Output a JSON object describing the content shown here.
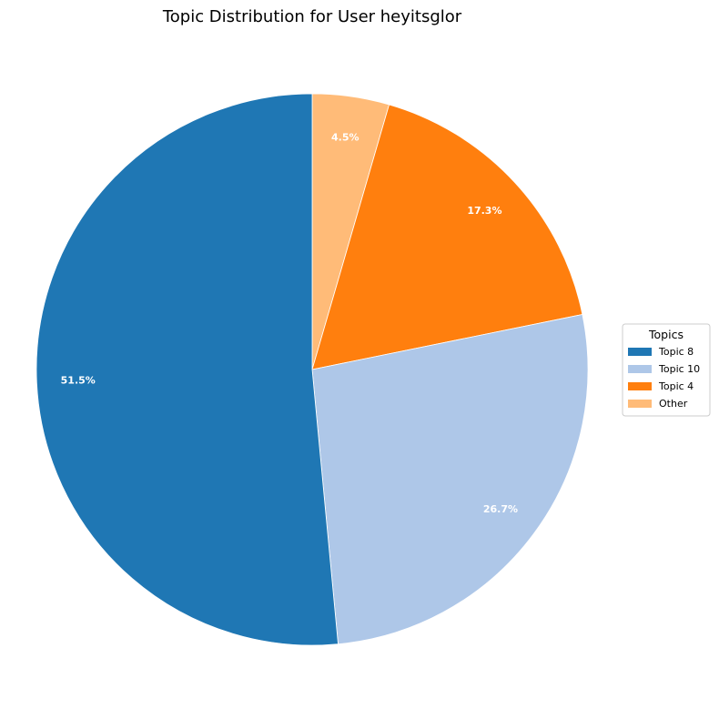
{
  "chart_data": {
    "type": "pie",
    "title": "Topic Distribution for User heyitsglor",
    "start_angle_deg": 90,
    "direction": "clockwise",
    "slices": [
      {
        "label": "Other",
        "value": 4.5,
        "pct_label": "4.5%",
        "color": "#ffbb78"
      },
      {
        "label": "Topic 4",
        "value": 17.3,
        "pct_label": "17.3%",
        "color": "#ff7f0e"
      },
      {
        "label": "Topic 10",
        "value": 26.7,
        "pct_label": "26.7%",
        "color": "#aec7e8"
      },
      {
        "label": "Topic 8",
        "value": 51.5,
        "pct_label": "51.5%",
        "color": "#1f77b4"
      }
    ],
    "legend": {
      "title": "Topics",
      "placement": "center-right",
      "entries": [
        "Topic 8",
        "Topic 10",
        "Topic 4",
        "Other"
      ]
    }
  }
}
